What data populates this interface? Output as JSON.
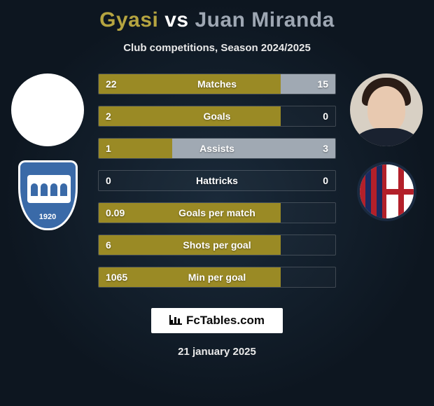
{
  "title": {
    "player1": "Gyasi",
    "vs": "vs",
    "player2": "Juan Miranda"
  },
  "subtitle": "Club competitions, Season 2024/2025",
  "colors": {
    "player1": "#b5a440",
    "player2": "#9ea7b3",
    "bar_left": "#9a8a25",
    "bar_right": "#a0a9b3",
    "background_outer": "#0d1620",
    "background_inner": "#1a2a3a"
  },
  "stats": [
    {
      "label": "Matches",
      "left_value": "22",
      "right_value": "15",
      "left_pct": 77,
      "right_pct": 23
    },
    {
      "label": "Goals",
      "left_value": "2",
      "right_value": "0",
      "left_pct": 77,
      "right_pct": 0
    },
    {
      "label": "Assists",
      "left_value": "1",
      "right_value": "3",
      "left_pct": 31,
      "right_pct": 69
    },
    {
      "label": "Hattricks",
      "left_value": "0",
      "right_value": "0",
      "left_pct": 0,
      "right_pct": 0
    },
    {
      "label": "Goals per match",
      "left_value": "0.09",
      "right_value": "",
      "left_pct": 77,
      "right_pct": 0
    },
    {
      "label": "Shots per goal",
      "left_value": "6",
      "right_value": "",
      "left_pct": 77,
      "right_pct": 0
    },
    {
      "label": "Min per goal",
      "left_value": "1065",
      "right_value": "",
      "left_pct": 77,
      "right_pct": 0
    }
  ],
  "crest_left": {
    "name": "EMPOLI F.C.",
    "year": "1920"
  },
  "brand": "FcTables.com",
  "date": "21 january 2025"
}
